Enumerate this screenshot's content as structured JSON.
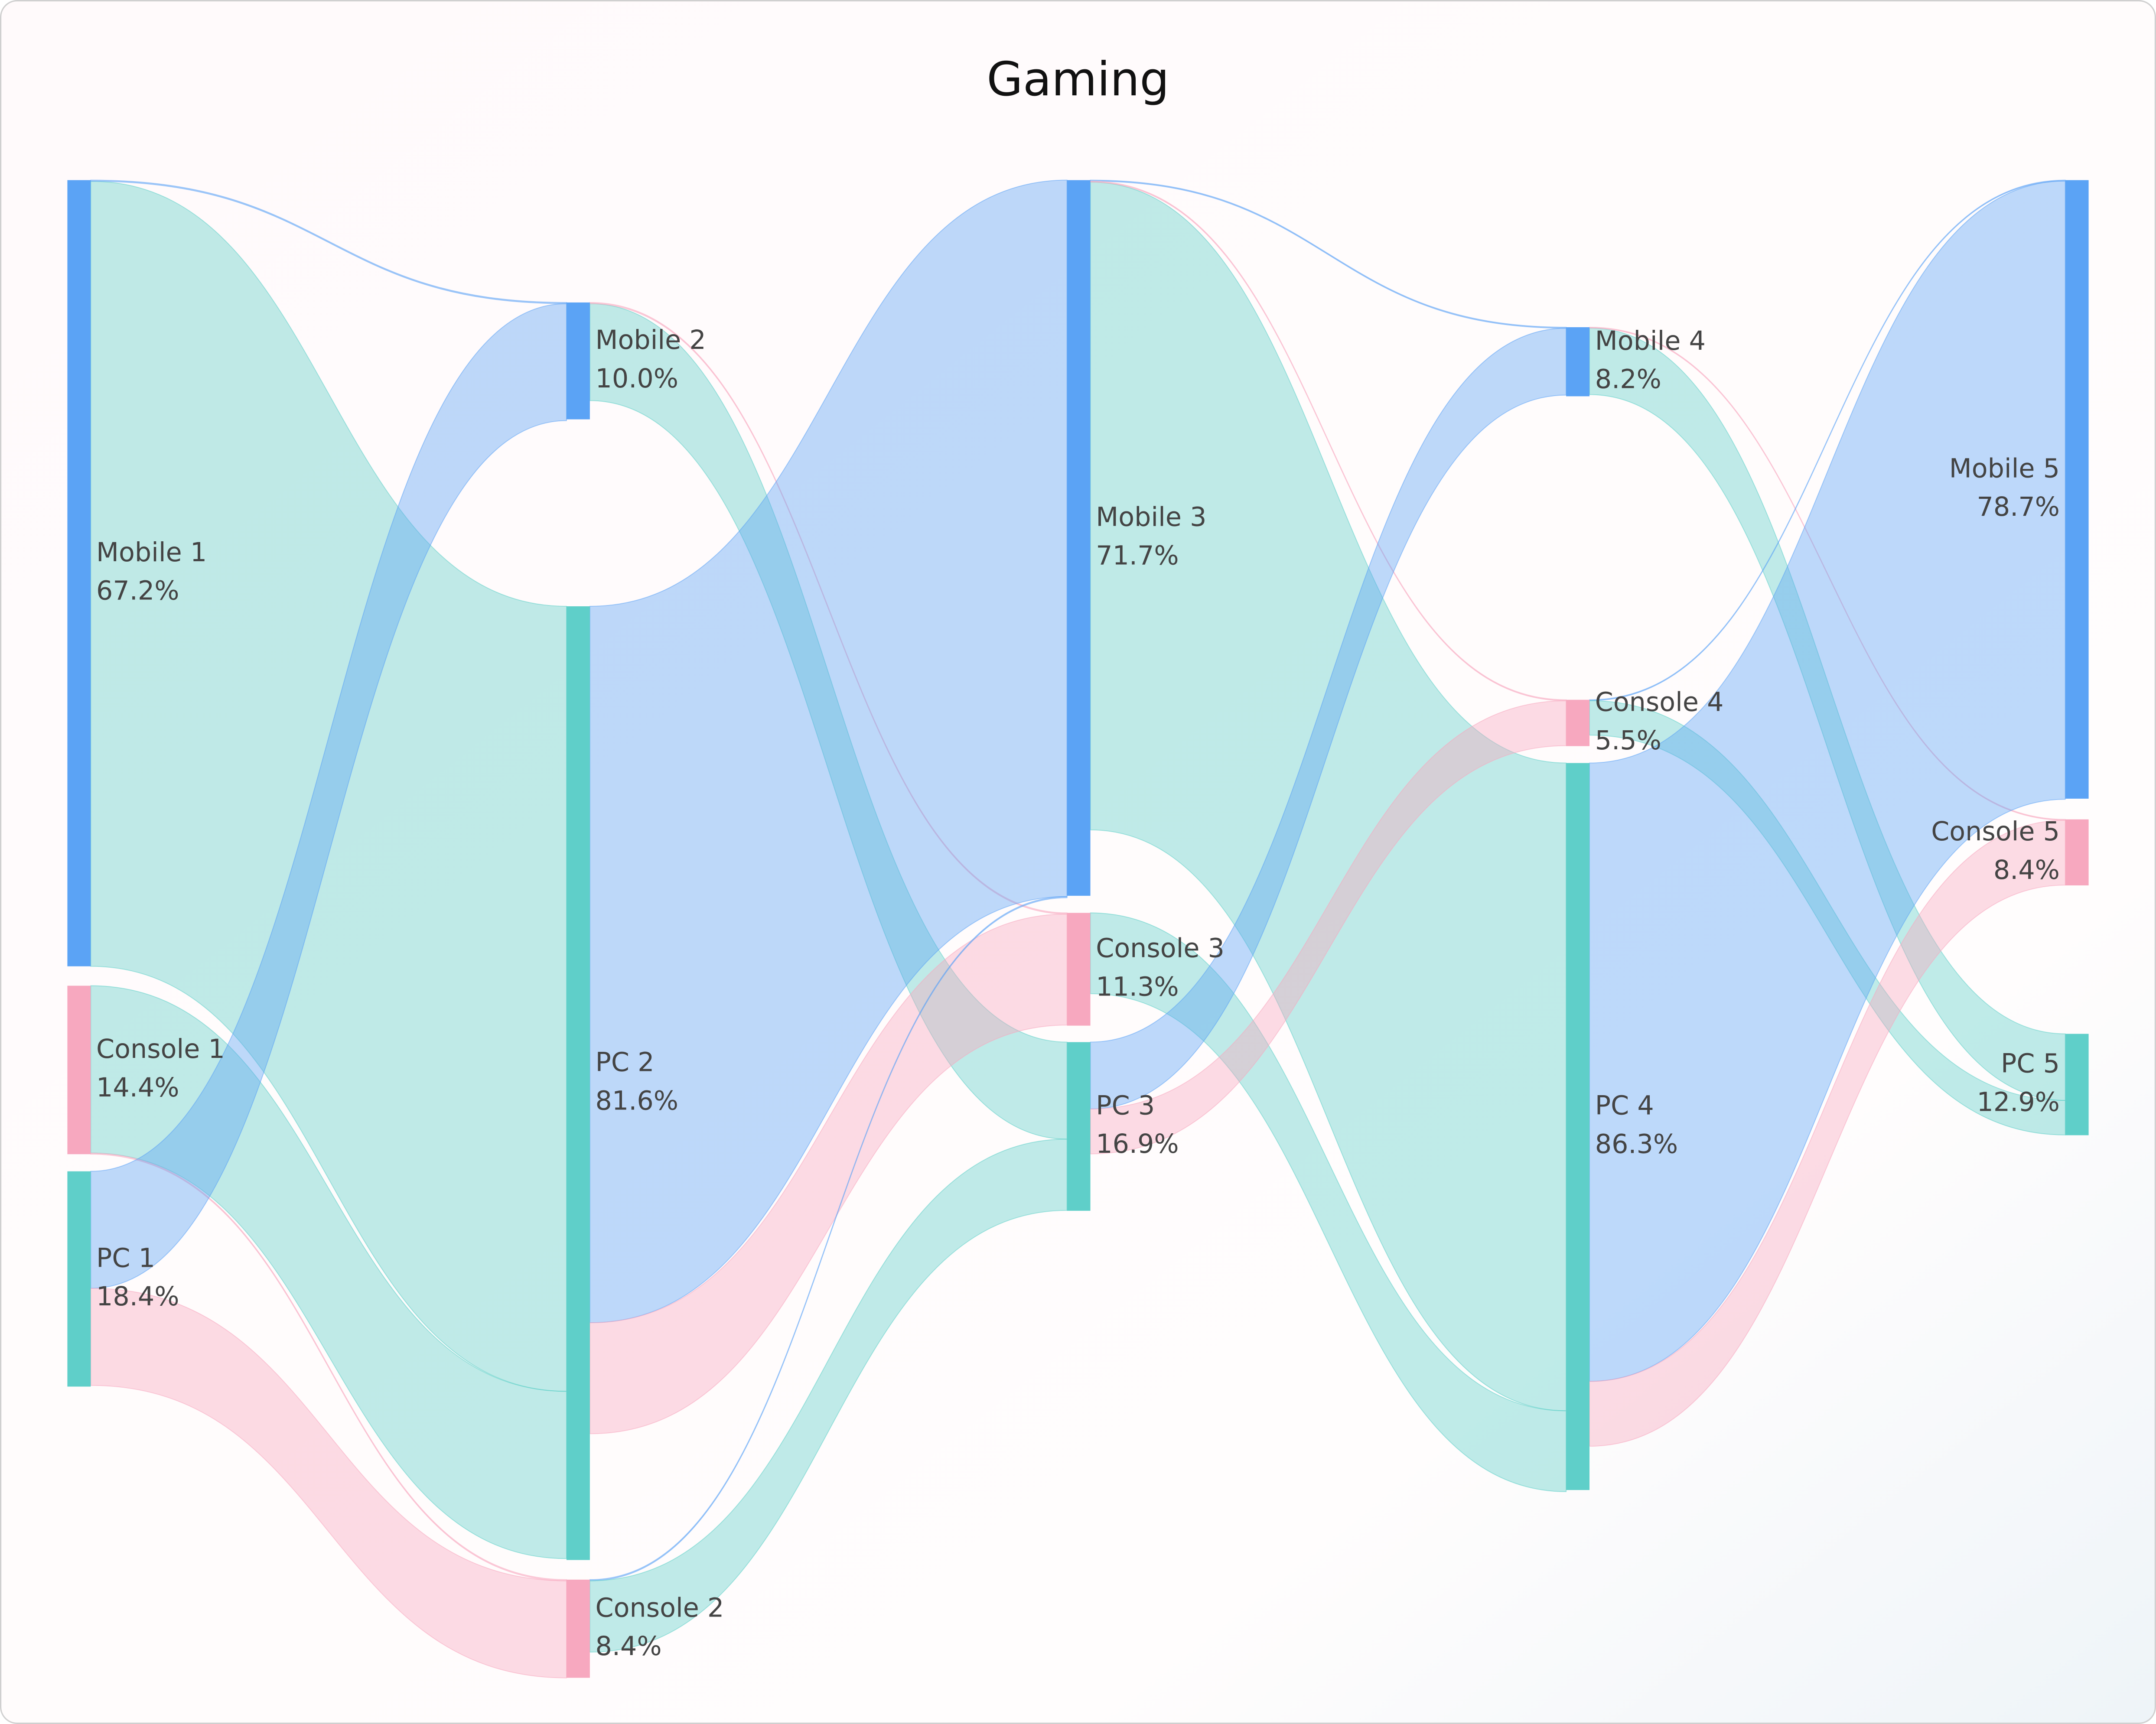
{
  "chart_data": {
    "type": "sankey",
    "title": "Gaming",
    "stages": [
      {
        "nodes": [
          {
            "name": "Mobile 1",
            "value": 67.2,
            "value_label": "67.2%",
            "color": "#5ba3f5"
          },
          {
            "name": "Console 1",
            "value": 14.4,
            "value_label": "14.4%",
            "color": "#f7a8bf"
          },
          {
            "name": "PC 1",
            "value": 18.4,
            "value_label": "18.4%",
            "color": "#5fcfc9"
          }
        ]
      },
      {
        "nodes": [
          {
            "name": "Mobile 2",
            "value": 10.0,
            "value_label": "10.0%",
            "color": "#5ba3f5"
          },
          {
            "name": "PC 2",
            "value": 81.6,
            "value_label": "81.6%",
            "color": "#5fcfc9"
          },
          {
            "name": "Console 2",
            "value": 8.4,
            "value_label": "8.4%",
            "color": "#f7a8bf"
          }
        ]
      },
      {
        "nodes": [
          {
            "name": "Mobile 3",
            "value": 71.7,
            "value_label": "71.7%",
            "color": "#5ba3f5"
          },
          {
            "name": "Console 3",
            "value": 11.3,
            "value_label": "11.3%",
            "color": "#f7a8bf"
          },
          {
            "name": "PC 3",
            "value": 16.9,
            "value_label": "16.9%",
            "color": "#5fcfc9"
          }
        ]
      },
      {
        "nodes": [
          {
            "name": "Mobile 4",
            "value": 8.2,
            "value_label": "8.2%",
            "color": "#5ba3f5"
          },
          {
            "name": "Console 4",
            "value": 5.5,
            "value_label": "5.5%",
            "color": "#f7a8bf"
          },
          {
            "name": "PC 4",
            "value": 86.3,
            "value_label": "86.3%",
            "color": "#5fcfc9"
          }
        ]
      },
      {
        "nodes": [
          {
            "name": "Mobile 5",
            "value": 78.7,
            "value_label": "78.7%",
            "color": "#5ba3f5"
          },
          {
            "name": "Console 5",
            "value": 8.4,
            "value_label": "8.4%",
            "color": "#f7a8bf"
          },
          {
            "name": "PC 5",
            "value": 12.9,
            "value_label": "12.9%",
            "color": "#5fcfc9"
          }
        ]
      }
    ],
    "links": [
      {
        "source": "Mobile 1",
        "target": "PC 2",
        "value": 67.1
      },
      {
        "source": "Mobile 1",
        "target": "Mobile 2",
        "value": 0.1
      },
      {
        "source": "Console 1",
        "target": "PC 2",
        "value": 14.3
      },
      {
        "source": "Console 1",
        "target": "Console 2",
        "value": 0.1
      },
      {
        "source": "PC 1",
        "target": "Mobile 2",
        "value": 10.0
      },
      {
        "source": "PC 1",
        "target": "Console 2",
        "value": 8.3
      },
      {
        "source": "Mobile 2",
        "target": "PC 3",
        "value": 8.3
      },
      {
        "source": "Mobile 2",
        "target": "Console 3",
        "value": 0.1
      },
      {
        "source": "PC 2",
        "target": "Mobile 3",
        "value": 61.3
      },
      {
        "source": "PC 2",
        "target": "Console 3",
        "value": 9.5
      },
      {
        "source": "Console 2",
        "target": "Mobile 3",
        "value": 0.1
      },
      {
        "source": "Console 2",
        "target": "PC 3",
        "value": 6.1
      },
      {
        "source": "Mobile 3",
        "target": "PC 4",
        "value": 64.9
      },
      {
        "source": "Mobile 3",
        "target": "Mobile 4",
        "value": 0.1
      },
      {
        "source": "Mobile 3",
        "target": "Console 4",
        "value": 0.1
      },
      {
        "source": "Console 3",
        "target": "PC 4",
        "value": 8.1
      },
      {
        "source": "PC 3",
        "target": "Mobile 4",
        "value": 6.7
      },
      {
        "source": "PC 3",
        "target": "Console 4",
        "value": 4.5
      },
      {
        "source": "Mobile 4",
        "target": "PC 5",
        "value": 7.9
      },
      {
        "source": "Mobile 4",
        "target": "Console 5",
        "value": 0.1
      },
      {
        "source": "Console 4",
        "target": "Mobile 5",
        "value": 0.1
      },
      {
        "source": "Console 4",
        "target": "PC 5",
        "value": 4.1
      },
      {
        "source": "PC 4",
        "target": "Mobile 5",
        "value": 73.4
      },
      {
        "source": "PC 4",
        "target": "Console 5",
        "value": 7.7
      }
    ]
  }
}
